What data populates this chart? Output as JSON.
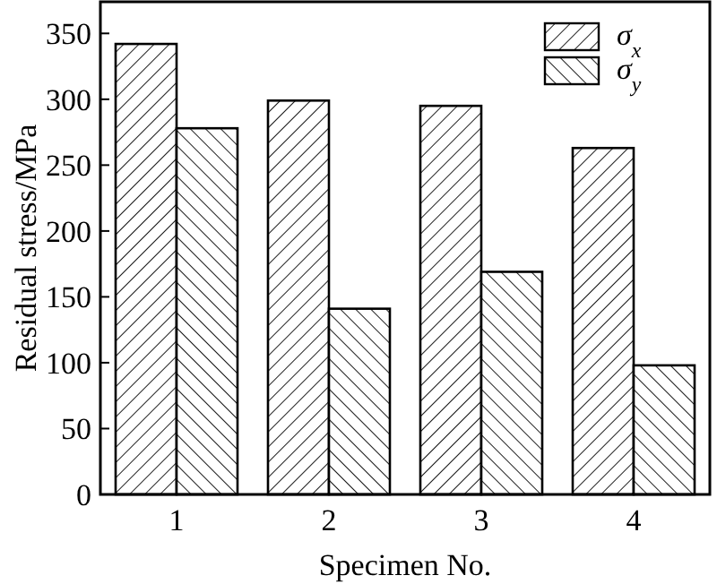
{
  "chart_data": {
    "type": "bar",
    "xlabel": "Specimen No.",
    "ylabel": "Residual stress/MPa",
    "categories": [
      "1",
      "2",
      "3",
      "4"
    ],
    "series": [
      {
        "name": "σ$_{x}$",
        "color": "#000000",
        "values": [
          342,
          299,
          295,
          263
        ]
      },
      {
        "name": "σ$_{y}$",
        "color": "#000000",
        "values": [
          278,
          141,
          169,
          98
        ]
      }
    ],
    "ylim": [
      0,
      374
    ],
    "yticks": [
      0,
      50,
      100,
      150,
      200,
      250,
      300,
      350
    ],
    "legend": "top right"
  }
}
